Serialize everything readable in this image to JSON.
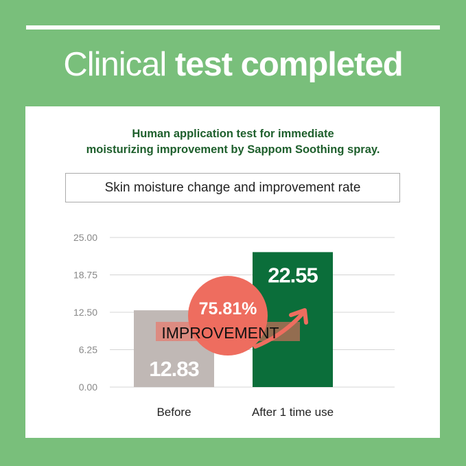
{
  "header": {
    "title_light": "Clinical",
    "title_bold": "test completed"
  },
  "subtitle_lines": [
    "Human application test for immediate",
    "moisturizing improvement by Sappom Soothing spray."
  ],
  "chart_data": {
    "type": "bar",
    "title": "Skin moisture change and improvement rate",
    "categories": [
      "Before",
      "After 1 time use"
    ],
    "values": [
      12.83,
      22.55
    ],
    "value_labels": [
      "12.83",
      "22.55"
    ],
    "yticks": [
      "0.00",
      "6.25",
      "12.50",
      "18.75",
      "25.00"
    ],
    "ylim": [
      0,
      25
    ],
    "grid": true,
    "colors": [
      "#c0b8b5",
      "#0b6e3a"
    ],
    "annotation": {
      "value": "75.81%",
      "label": "IMPROVEMENT",
      "color": "#ee6d5f"
    }
  }
}
